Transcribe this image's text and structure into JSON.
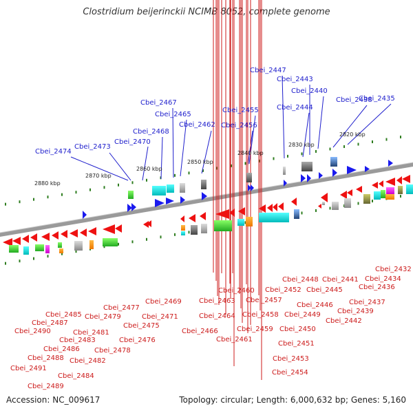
{
  "title": "Clostridium beijerinckii NCIMB 8052, complete genome",
  "footer": {
    "accession": "Accession: NC_009617",
    "topology": "Topology: circular; Length: 6,000,632 bp; Genes: 5,160"
  },
  "colors": {
    "forward_gene": "#1a1aee",
    "reverse_gene": "#ee1111",
    "backbone": "#9a9a9a",
    "label_forward": "#1d1dcc",
    "label_reverse": "#cc1a1a",
    "tick": "#2e7d1f"
  },
  "kbp_labels": [
    "2880 kbp",
    "2870 kbp",
    "2860 kbp",
    "2850 kbp",
    "2840 kbp",
    "2830 kbp",
    "2820 kbp"
  ],
  "forward_genes": [
    "Cbei_2474",
    "Cbei_2473",
    "Cbei_2470",
    "Cbei_2468",
    "Cbei_2467",
    "Cbei_2465",
    "Cbei_2462",
    "Cbei_2456",
    "Cbei_2455",
    "Cbei_2447",
    "Cbei_2444",
    "Cbei_2443",
    "Cbei_2440",
    "Cbei_2438",
    "Cbei_2435"
  ],
  "reverse_genes": [
    "Cbei_2491",
    "Cbei_2490",
    "Cbei_2489",
    "Cbei_2488",
    "Cbei_2487",
    "Cbei_2486",
    "Cbei_2485",
    "Cbei_2484",
    "Cbei_2483",
    "Cbei_2482",
    "Cbei_2481",
    "Cbei_2479",
    "Cbei_2478",
    "Cbei_2477",
    "Cbei_2476",
    "Cbei_2475",
    "Cbei_2471",
    "Cbei_2469",
    "Cbei_2466",
    "Cbei_2464",
    "Cbei_2463",
    "Cbei_2461",
    "Cbei_2460",
    "Cbei_2459",
    "Cbei_2458",
    "Cbei_2457",
    "Cbei_2454",
    "Cbei_2453",
    "Cbei_2452",
    "Cbei_2451",
    "Cbei_2450",
    "Cbei_2449",
    "Cbei_2448",
    "Cbei_2446",
    "Cbei_2445",
    "Cbei_2442",
    "Cbei_2441",
    "Cbei_2439",
    "Cbei_2437",
    "Cbei_2436",
    "Cbei_2434",
    "Cbei_2432"
  ]
}
